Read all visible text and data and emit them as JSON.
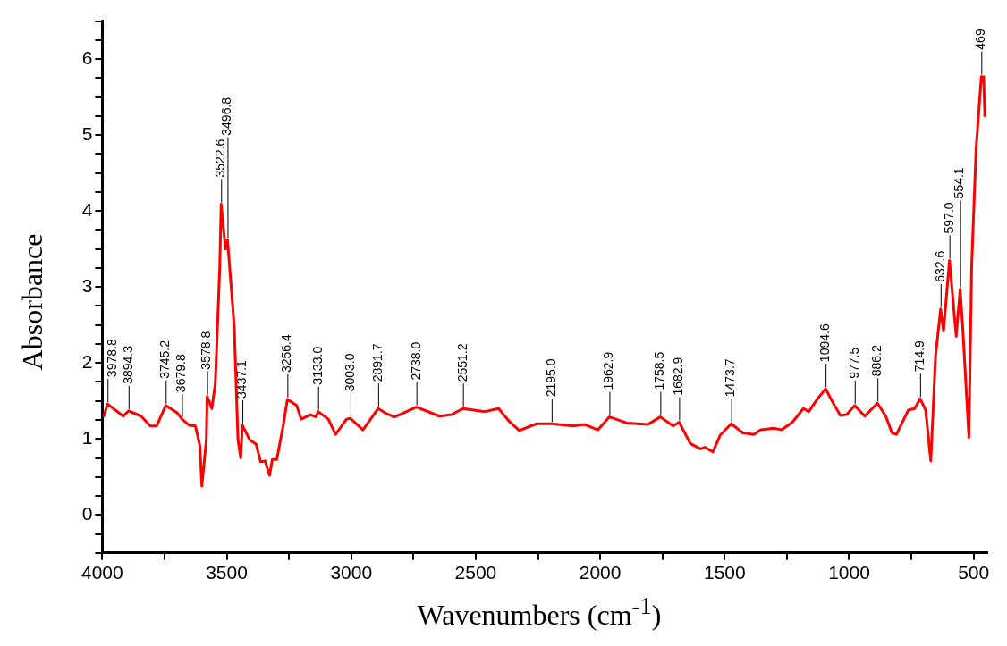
{
  "chart_data": {
    "type": "line",
    "xlabel": "Wavenumbers (cm$^{-1}$)",
    "ylabel": "Absorbance",
    "xlim": [
      4000,
      445
    ],
    "ylim": [
      -0.5,
      6.5
    ],
    "xticks": [
      4000,
      {
        "value": 3750,
        "label": null
      },
      3500,
      {
        "value": 3250,
        "label": null
      },
      3000,
      {
        "value": 2750,
        "label": null
      },
      2500,
      {
        "value": 2250,
        "label": null
      },
      2000,
      {
        "value": 1750,
        "label": null
      },
      1500,
      {
        "value": 1250,
        "label": null
      },
      1000,
      {
        "value": 750,
        "label": null
      },
      500
    ],
    "yticks": [
      {
        "value": -0.5,
        "label": null
      },
      {
        "value": -0.25,
        "label": null
      },
      0,
      {
        "value": 0.25,
        "label": null
      },
      {
        "value": 0.5,
        "label": null
      },
      {
        "value": 0.75,
        "label": null
      },
      1,
      {
        "value": 1.25,
        "label": null
      },
      {
        "value": 1.5,
        "label": null
      },
      {
        "value": 1.75,
        "label": null
      },
      2,
      {
        "value": 2.25,
        "label": null
      },
      {
        "value": 2.5,
        "label": null
      },
      {
        "value": 2.75,
        "label": null
      },
      3,
      {
        "value": 3.25,
        "label": null
      },
      {
        "value": 3.5,
        "label": null
      },
      {
        "value": 3.75,
        "label": null
      },
      4,
      {
        "value": 4.25,
        "label": null
      },
      {
        "value": 4.5,
        "label": null
      },
      {
        "value": 4.75,
        "label": null
      },
      5,
      {
        "value": 5.25,
        "label": null
      },
      {
        "value": 5.5,
        "label": null
      },
      {
        "value": 5.75,
        "label": null
      },
      6,
      {
        "value": 6.25,
        "label": null
      },
      {
        "value": 6.5,
        "label": null
      }
    ],
    "grid": false,
    "legend": false,
    "marker": "none",
    "line_style": "solid",
    "series": [
      {
        "color": "#ff0000",
        "x": [
          3995,
          3978.8,
          3916,
          3894.3,
          3844,
          3807,
          3782,
          3745.2,
          3698,
          3679.8,
          3651,
          3626,
          3608,
          3600,
          3582,
          3578.8,
          3560,
          3546,
          3528,
          3522.6,
          3505,
          3496.8,
          3470,
          3455,
          3444,
          3437.1,
          3408,
          3382,
          3364,
          3346,
          3328,
          3317,
          3299,
          3273,
          3256.4,
          3219,
          3201,
          3164,
          3142,
          3133.0,
          3092,
          3063,
          3019,
          3003.0,
          2953,
          2891.7,
          2863,
          2826,
          2738.0,
          2645,
          2597,
          2551.2,
          2463,
          2408,
          2365,
          2325,
          2256,
          2195.0,
          2107,
          2063,
          2009,
          1962.9,
          1893,
          1809,
          1758.5,
          1707,
          1682.9,
          1638,
          1598,
          1580,
          1547,
          1518,
          1473.7,
          1427,
          1383,
          1355,
          1300,
          1271,
          1228,
          1184,
          1162,
          1129,
          1094.6,
          1064,
          1035,
          1010,
          977.5,
          937,
          886.2,
          853,
          828,
          810,
          762,
          737,
          714.9,
          693,
          672,
          653,
          632.6,
          621,
          597.0,
          570,
          554.1,
          544,
          519,
          508,
          490,
          469,
          464,
          460,
          455
        ],
        "values": [
          1.29,
          1.46,
          1.3,
          1.37,
          1.3,
          1.17,
          1.17,
          1.44,
          1.34,
          1.26,
          1.18,
          1.17,
          0.91,
          0.38,
          0.99,
          1.56,
          1.4,
          1.73,
          3.27,
          4.09,
          3.5,
          3.62,
          2.48,
          0.99,
          0.75,
          1.18,
          0.99,
          0.93,
          0.7,
          0.71,
          0.52,
          0.73,
          0.73,
          1.18,
          1.52,
          1.44,
          1.26,
          1.32,
          1.29,
          1.36,
          1.26,
          1.06,
          1.26,
          1.27,
          1.12,
          1.4,
          1.34,
          1.29,
          1.42,
          1.3,
          1.32,
          1.4,
          1.36,
          1.4,
          1.23,
          1.11,
          1.2,
          1.2,
          1.17,
          1.19,
          1.12,
          1.29,
          1.21,
          1.19,
          1.29,
          1.17,
          1.22,
          0.94,
          0.87,
          0.89,
          0.83,
          1.05,
          1.2,
          1.08,
          1.06,
          1.12,
          1.14,
          1.12,
          1.22,
          1.4,
          1.36,
          1.52,
          1.66,
          1.47,
          1.31,
          1.32,
          1.44,
          1.3,
          1.47,
          1.3,
          1.08,
          1.06,
          1.38,
          1.4,
          1.53,
          1.38,
          0.71,
          2.09,
          2.71,
          2.42,
          3.35,
          2.35,
          2.97,
          2.48,
          1.02,
          3.27,
          4.83,
          5.77,
          5.7,
          5.77,
          5.24
        ]
      }
    ],
    "annotations": [
      {
        "text": "3978.8",
        "x": 3978.8,
        "y": 1.46
      },
      {
        "text": "3894.3",
        "x": 3894.3,
        "y": 1.37
      },
      {
        "text": "3745.2",
        "x": 3745.2,
        "y": 1.44
      },
      {
        "text": "3679.8",
        "x": 3679.8,
        "y": 1.26
      },
      {
        "text": "3578.8",
        "x": 3578.8,
        "y": 1.56
      },
      {
        "text": "3522.6",
        "x": 3522.6,
        "y": 4.09
      },
      {
        "text": "3496.8",
        "x": 3496.8,
        "y": 3.62
      },
      {
        "text": "3437.1",
        "x": 3437.1,
        "y": 1.18
      },
      {
        "text": "3256.4",
        "x": 3256.4,
        "y": 1.52
      },
      {
        "text": "3133.0",
        "x": 3133.0,
        "y": 1.36
      },
      {
        "text": "3003.0",
        "x": 3003.0,
        "y": 1.27
      },
      {
        "text": "2891.7",
        "x": 2891.7,
        "y": 1.4
      },
      {
        "text": "2738.0",
        "x": 2738.0,
        "y": 1.42
      },
      {
        "text": "2551.2",
        "x": 2551.2,
        "y": 1.4
      },
      {
        "text": "2195.0",
        "x": 2195.0,
        "y": 1.2
      },
      {
        "text": "1962.9",
        "x": 1962.9,
        "y": 1.29
      },
      {
        "text": "1758.5",
        "x": 1758.5,
        "y": 1.29
      },
      {
        "text": "1682.9",
        "x": 1682.9,
        "y": 1.22
      },
      {
        "text": "1473.7",
        "x": 1473.7,
        "y": 1.2
      },
      {
        "text": "1094.6",
        "x": 1094.6,
        "y": 1.66
      },
      {
        "text": "977.5",
        "x": 977.5,
        "y": 1.44
      },
      {
        "text": "886.2",
        "x": 886.2,
        "y": 1.47
      },
      {
        "text": "714.9",
        "x": 714.9,
        "y": 1.53
      },
      {
        "text": "632.6",
        "x": 632.6,
        "y": 2.71
      },
      {
        "text": "597.0",
        "x": 597.0,
        "y": 3.35
      },
      {
        "text": "554.1",
        "x": 554.1,
        "y": 2.97
      },
      {
        "text": "469",
        "x": 469,
        "y": 5.77
      }
    ]
  }
}
